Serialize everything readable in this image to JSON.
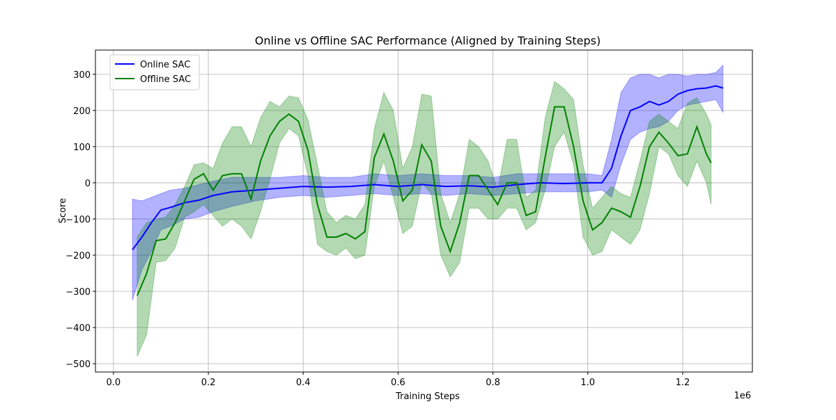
{
  "chart_data": {
    "type": "line",
    "title": "Online vs Offline SAC Performance (Aligned by Training Steps)",
    "x_label": "Training Steps",
    "y_label": "Score",
    "x_offset_label": "1e6",
    "xlim": [
      -38000,
      1347000
    ],
    "ylim": [
      -523,
      367
    ],
    "xticks": [
      {
        "value": 0,
        "label": "0.0"
      },
      {
        "value": 200000,
        "label": "0.2"
      },
      {
        "value": 400000,
        "label": "0.4"
      },
      {
        "value": 600000,
        "label": "0.6"
      },
      {
        "value": 800000,
        "label": "0.8"
      },
      {
        "value": 1000000,
        "label": "1.0"
      },
      {
        "value": 1200000,
        "label": "1.2"
      }
    ],
    "yticks": [
      {
        "value": -500,
        "label": "−500"
      },
      {
        "value": -400,
        "label": "−400"
      },
      {
        "value": -300,
        "label": "−300"
      },
      {
        "value": -200,
        "label": "−200"
      },
      {
        "value": -100,
        "label": "−100"
      },
      0,
      100,
      200,
      300
    ],
    "grid": true,
    "legend": "upper left",
    "band_opacity": 0.3,
    "series": [
      {
        "name": "Online SAC",
        "color": "#0000ff",
        "x": [
          40000,
          60000,
          80000,
          100000,
          120000,
          150000,
          180000,
          210000,
          250000,
          300000,
          350000,
          400000,
          450000,
          500000,
          550000,
          600000,
          650000,
          700000,
          750000,
          800000,
          850000,
          900000,
          950000,
          1000000,
          1030000,
          1050000,
          1070000,
          1090000,
          1110000,
          1130000,
          1150000,
          1170000,
          1190000,
          1210000,
          1230000,
          1250000,
          1270000,
          1285000
        ],
        "values": [
          -185,
          -150,
          -110,
          -75,
          -68,
          -55,
          -48,
          -35,
          -25,
          -20,
          -15,
          -10,
          -12,
          -10,
          -5,
          -10,
          -5,
          -10,
          -8,
          -12,
          -5,
          0,
          -2,
          0,
          0,
          40,
          130,
          200,
          210,
          225,
          215,
          225,
          245,
          255,
          260,
          262,
          268,
          262
        ],
        "lower": [
          -325,
          -240,
          -190,
          -130,
          -120,
          -100,
          -95,
          -80,
          -65,
          -50,
          -40,
          -35,
          -40,
          -35,
          -30,
          -35,
          -30,
          -35,
          -30,
          -35,
          -30,
          -25,
          -25,
          -25,
          -20,
          -40,
          50,
          120,
          140,
          150,
          155,
          170,
          200,
          215,
          220,
          225,
          230,
          195
        ],
        "upper": [
          -45,
          -50,
          -40,
          -30,
          -20,
          -15,
          -5,
          5,
          15,
          15,
          15,
          20,
          15,
          15,
          25,
          20,
          25,
          20,
          20,
          15,
          25,
          25,
          25,
          25,
          20,
          120,
          250,
          290,
          300,
          300,
          290,
          300,
          300,
          295,
          300,
          300,
          305,
          325
        ]
      },
      {
        "name": "Offline SAC",
        "color": "#008000",
        "x": [
          50000,
          70000,
          90000,
          110000,
          130000,
          150000,
          170000,
          190000,
          210000,
          230000,
          250000,
          270000,
          290000,
          310000,
          330000,
          350000,
          370000,
          390000,
          410000,
          430000,
          450000,
          470000,
          490000,
          510000,
          530000,
          550000,
          570000,
          590000,
          610000,
          630000,
          650000,
          670000,
          690000,
          710000,
          730000,
          750000,
          770000,
          790000,
          810000,
          830000,
          850000,
          870000,
          890000,
          910000,
          930000,
          950000,
          970000,
          990000,
          1010000,
          1030000,
          1050000,
          1070000,
          1090000,
          1110000,
          1130000,
          1150000,
          1170000,
          1190000,
          1210000,
          1230000,
          1250000,
          1260000
        ],
        "values": [
          -312,
          -250,
          -160,
          -155,
          -110,
          -50,
          10,
          25,
          -20,
          20,
          25,
          25,
          -45,
          60,
          130,
          170,
          190,
          170,
          90,
          -60,
          -150,
          -150,
          -140,
          -155,
          -135,
          70,
          135,
          60,
          -50,
          -20,
          105,
          60,
          -120,
          -190,
          -110,
          20,
          20,
          -20,
          -60,
          0,
          0,
          -90,
          -80,
          70,
          210,
          210,
          100,
          -50,
          -130,
          -110,
          -70,
          -80,
          -95,
          -10,
          100,
          140,
          110,
          75,
          80,
          155,
          80,
          55
        ],
        "lower": [
          -480,
          -420,
          -220,
          -215,
          -180,
          -95,
          -80,
          -60,
          -90,
          -120,
          -100,
          -120,
          -155,
          -80,
          10,
          110,
          150,
          130,
          20,
          -170,
          -190,
          -200,
          -180,
          -210,
          -200,
          -10,
          60,
          -40,
          -140,
          -120,
          0,
          -30,
          -200,
          -260,
          -220,
          -70,
          -70,
          -100,
          -100,
          -70,
          -70,
          -130,
          -110,
          -20,
          100,
          140,
          50,
          -150,
          -200,
          -190,
          -130,
          -150,
          -170,
          -130,
          -30,
          100,
          80,
          20,
          -10,
          60,
          0,
          -60
        ],
        "upper": [
          -150,
          -110,
          -100,
          -95,
          -60,
          -10,
          50,
          55,
          40,
          110,
          155,
          155,
          100,
          180,
          225,
          210,
          240,
          235,
          175,
          50,
          -80,
          -110,
          -90,
          -100,
          -60,
          150,
          250,
          200,
          40,
          100,
          245,
          240,
          -30,
          -110,
          -30,
          120,
          100,
          60,
          -20,
          120,
          120,
          -40,
          -20,
          180,
          280,
          260,
          230,
          50,
          -70,
          -40,
          -10,
          -30,
          -40,
          60,
          170,
          190,
          170,
          150,
          220,
          235,
          190,
          160
        ]
      }
    ]
  }
}
